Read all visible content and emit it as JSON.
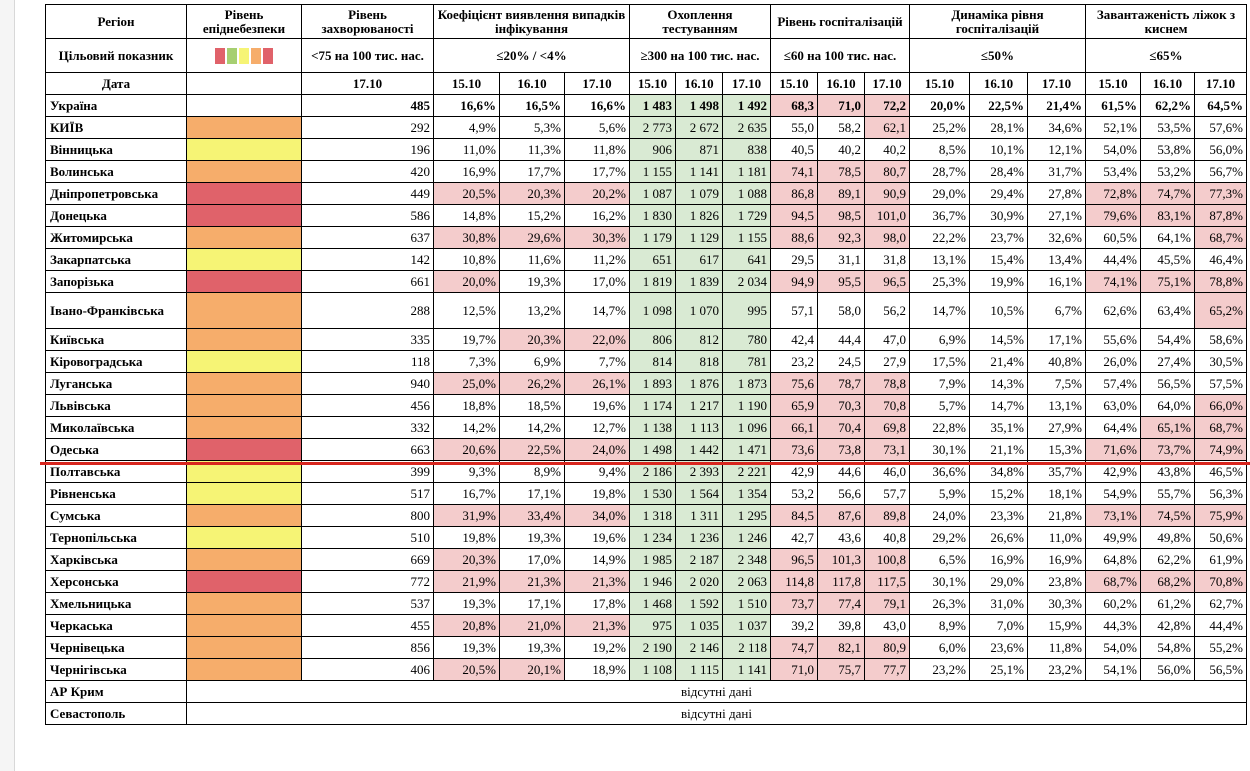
{
  "headers": {
    "region": "Регіон",
    "level": "Рівень епіднебезпеки",
    "incidence": "Рівень захворюваності",
    "detection": "Коефіцієнт виявлення випадків інфікування",
    "testing": "Охоплення тестуванням",
    "hosp": "Рівень госпіталізацій",
    "dyn": "Динаміка рівня госпіталізацій",
    "beds": "Завантаженість ліжок з киснем"
  },
  "targets": {
    "label": "Цільовий показник",
    "incidence": "<75 на 100 тис. нас.",
    "detection": "≤20% / <4%",
    "testing": "≥300 на 100 тис. нас.",
    "hosp": "≤60 на 100 тис. нас.",
    "dyn": "≤50%",
    "beds": "≤65%",
    "legend_colors": [
      "#e0626a",
      "#a6cf71",
      "#f6f475",
      "#f6ad6b",
      "#e0626a"
    ]
  },
  "dates": {
    "label": "Дата",
    "incidence": "17.10",
    "d1": "15.10",
    "d2": "16.10",
    "d3": "17.10"
  },
  "colors": {
    "yellow": "#f6f475",
    "orange": "#f6ad6b",
    "red": "#e0626a",
    "green_cell": "#d9ead3",
    "red_cell": "#f4cccc",
    "divider": "#d8261e"
  },
  "rows": [
    {
      "region": "Україна",
      "level": "",
      "inc": "485",
      "det": [
        "16,6%",
        "16,5%",
        "16,6%"
      ],
      "test": [
        "1 483",
        "1 498",
        "1 492"
      ],
      "hosp": [
        "68,3",
        "71,0",
        "72,2"
      ],
      "dyn": [
        "20,0%",
        "22,5%",
        "21,4%"
      ],
      "beds": [
        "61,5%",
        "62,2%",
        "64,5%"
      ],
      "det_hi": [
        0,
        0,
        0
      ],
      "hosp_hi": [
        1,
        1,
        1
      ],
      "beds_hi": [
        0,
        0,
        0
      ]
    },
    {
      "region": "КИЇВ",
      "level": "o",
      "inc": "292",
      "det": [
        "4,9%",
        "5,3%",
        "5,6%"
      ],
      "test": [
        "2 773",
        "2 672",
        "2 635"
      ],
      "hosp": [
        "55,0",
        "58,2",
        "62,1"
      ],
      "dyn": [
        "25,2%",
        "28,1%",
        "34,6%"
      ],
      "beds": [
        "52,1%",
        "53,5%",
        "57,6%"
      ],
      "det_hi": [
        0,
        0,
        0
      ],
      "hosp_hi": [
        0,
        0,
        1
      ],
      "beds_hi": [
        0,
        0,
        0
      ]
    },
    {
      "region": "Вінницька",
      "level": "y",
      "inc": "196",
      "det": [
        "11,0%",
        "11,3%",
        "11,8%"
      ],
      "test": [
        "906",
        "871",
        "838"
      ],
      "hosp": [
        "40,5",
        "40,2",
        "40,2"
      ],
      "dyn": [
        "8,5%",
        "10,1%",
        "12,1%"
      ],
      "beds": [
        "54,0%",
        "53,8%",
        "56,0%"
      ],
      "det_hi": [
        0,
        0,
        0
      ],
      "hosp_hi": [
        0,
        0,
        0
      ],
      "beds_hi": [
        0,
        0,
        0
      ]
    },
    {
      "region": "Волинська",
      "level": "o",
      "inc": "420",
      "det": [
        "16,9%",
        "17,7%",
        "17,7%"
      ],
      "test": [
        "1 155",
        "1 141",
        "1 181"
      ],
      "hosp": [
        "74,1",
        "78,5",
        "80,7"
      ],
      "dyn": [
        "28,7%",
        "28,4%",
        "31,7%"
      ],
      "beds": [
        "53,4%",
        "53,2%",
        "56,7%"
      ],
      "det_hi": [
        0,
        0,
        0
      ],
      "hosp_hi": [
        1,
        1,
        1
      ],
      "beds_hi": [
        0,
        0,
        0
      ]
    },
    {
      "region": "Дніпропетровська",
      "level": "r",
      "inc": "449",
      "det": [
        "20,5%",
        "20,3%",
        "20,2%"
      ],
      "test": [
        "1 087",
        "1 079",
        "1 088"
      ],
      "hosp": [
        "86,8",
        "89,1",
        "90,9"
      ],
      "dyn": [
        "29,0%",
        "29,4%",
        "27,8%"
      ],
      "beds": [
        "72,8%",
        "74,7%",
        "77,3%"
      ],
      "det_hi": [
        1,
        1,
        1
      ],
      "hosp_hi": [
        1,
        1,
        1
      ],
      "beds_hi": [
        1,
        1,
        1
      ]
    },
    {
      "region": "Донецька",
      "level": "r",
      "inc": "586",
      "det": [
        "14,8%",
        "15,2%",
        "16,2%"
      ],
      "test": [
        "1 830",
        "1 826",
        "1 729"
      ],
      "hosp": [
        "94,5",
        "98,5",
        "101,0"
      ],
      "dyn": [
        "36,7%",
        "30,9%",
        "27,1%"
      ],
      "beds": [
        "79,6%",
        "83,1%",
        "87,8%"
      ],
      "det_hi": [
        0,
        0,
        0
      ],
      "hosp_hi": [
        1,
        1,
        1
      ],
      "beds_hi": [
        1,
        1,
        1
      ]
    },
    {
      "region": "Житомирська",
      "level": "o",
      "inc": "637",
      "det": [
        "30,8%",
        "29,6%",
        "30,3%"
      ],
      "test": [
        "1 179",
        "1 129",
        "1 155"
      ],
      "hosp": [
        "88,6",
        "92,3",
        "98,0"
      ],
      "dyn": [
        "22,2%",
        "23,7%",
        "32,6%"
      ],
      "beds": [
        "60,5%",
        "64,1%",
        "68,7%"
      ],
      "det_hi": [
        1,
        1,
        1
      ],
      "hosp_hi": [
        1,
        1,
        1
      ],
      "beds_hi": [
        0,
        0,
        1
      ]
    },
    {
      "region": "Закарпатська",
      "level": "y",
      "inc": "142",
      "det": [
        "10,8%",
        "11,6%",
        "11,2%"
      ],
      "test": [
        "651",
        "617",
        "641"
      ],
      "hosp": [
        "29,5",
        "31,1",
        "31,8"
      ],
      "dyn": [
        "13,1%",
        "15,4%",
        "13,4%"
      ],
      "beds": [
        "44,4%",
        "45,5%",
        "46,4%"
      ],
      "det_hi": [
        0,
        0,
        0
      ],
      "hosp_hi": [
        0,
        0,
        0
      ],
      "beds_hi": [
        0,
        0,
        0
      ]
    },
    {
      "region": "Запорізька",
      "level": "r",
      "inc": "661",
      "det": [
        "20,0%",
        "19,3%",
        "17,0%"
      ],
      "test": [
        "1 819",
        "1 839",
        "2 034"
      ],
      "hosp": [
        "94,9",
        "95,5",
        "96,5"
      ],
      "dyn": [
        "25,3%",
        "19,9%",
        "16,1%"
      ],
      "beds": [
        "74,1%",
        "75,1%",
        "78,8%"
      ],
      "det_hi": [
        1,
        0,
        0
      ],
      "hosp_hi": [
        1,
        1,
        1
      ],
      "beds_hi": [
        1,
        1,
        1
      ]
    },
    {
      "region": "Івано-Франківська",
      "level": "o",
      "inc": "288",
      "det": [
        "12,5%",
        "13,2%",
        "14,7%"
      ],
      "test": [
        "1 098",
        "1 070",
        "995"
      ],
      "hosp": [
        "57,1",
        "58,0",
        "56,2"
      ],
      "dyn": [
        "14,7%",
        "10,5%",
        "6,7%"
      ],
      "beds": [
        "62,6%",
        "63,4%",
        "65,2%"
      ],
      "det_hi": [
        0,
        0,
        0
      ],
      "hosp_hi": [
        0,
        0,
        0
      ],
      "beds_hi": [
        0,
        0,
        1
      ],
      "tall": true
    },
    {
      "region": "Київська",
      "level": "o",
      "inc": "335",
      "det": [
        "19,7%",
        "20,3%",
        "22,0%"
      ],
      "test": [
        "806",
        "812",
        "780"
      ],
      "hosp": [
        "42,4",
        "44,4",
        "47,0"
      ],
      "dyn": [
        "6,9%",
        "14,5%",
        "17,1%"
      ],
      "beds": [
        "55,6%",
        "54,4%",
        "58,6%"
      ],
      "det_hi": [
        0,
        1,
        1
      ],
      "hosp_hi": [
        0,
        0,
        0
      ],
      "beds_hi": [
        0,
        0,
        0
      ]
    },
    {
      "region": "Кіровоградська",
      "level": "y",
      "inc": "118",
      "det": [
        "7,3%",
        "6,9%",
        "7,7%"
      ],
      "test": [
        "814",
        "818",
        "781"
      ],
      "hosp": [
        "23,2",
        "24,5",
        "27,9"
      ],
      "dyn": [
        "17,5%",
        "21,4%",
        "40,8%"
      ],
      "beds": [
        "26,0%",
        "27,4%",
        "30,5%"
      ],
      "det_hi": [
        0,
        0,
        0
      ],
      "hosp_hi": [
        0,
        0,
        0
      ],
      "beds_hi": [
        0,
        0,
        0
      ]
    },
    {
      "region": "Луганська",
      "level": "o",
      "inc": "940",
      "det": [
        "25,0%",
        "26,2%",
        "26,1%"
      ],
      "test": [
        "1 893",
        "1 876",
        "1 873"
      ],
      "hosp": [
        "75,6",
        "78,7",
        "78,8"
      ],
      "dyn": [
        "7,9%",
        "14,3%",
        "7,5%"
      ],
      "beds": [
        "57,4%",
        "56,5%",
        "57,5%"
      ],
      "det_hi": [
        1,
        1,
        1
      ],
      "hosp_hi": [
        1,
        1,
        1
      ],
      "beds_hi": [
        0,
        0,
        0
      ]
    },
    {
      "region": "Львівська",
      "level": "o",
      "inc": "456",
      "det": [
        "18,8%",
        "18,5%",
        "19,6%"
      ],
      "test": [
        "1 174",
        "1 217",
        "1 190"
      ],
      "hosp": [
        "65,9",
        "70,3",
        "70,8"
      ],
      "dyn": [
        "5,7%",
        "14,7%",
        "13,1%"
      ],
      "beds": [
        "63,0%",
        "64,0%",
        "66,0%"
      ],
      "det_hi": [
        0,
        0,
        0
      ],
      "hosp_hi": [
        1,
        1,
        1
      ],
      "beds_hi": [
        0,
        0,
        1
      ]
    },
    {
      "region": "Миколаївська",
      "level": "o",
      "inc": "332",
      "det": [
        "14,2%",
        "14,2%",
        "12,7%"
      ],
      "test": [
        "1 138",
        "1 113",
        "1 096"
      ],
      "hosp": [
        "66,1",
        "70,4",
        "69,8"
      ],
      "dyn": [
        "22,8%",
        "35,1%",
        "27,9%"
      ],
      "beds": [
        "64,4%",
        "65,1%",
        "68,7%"
      ],
      "det_hi": [
        0,
        0,
        0
      ],
      "hosp_hi": [
        1,
        1,
        1
      ],
      "beds_hi": [
        0,
        1,
        1
      ]
    },
    {
      "region": "Одеська",
      "level": "r",
      "inc": "663",
      "det": [
        "20,6%",
        "22,5%",
        "24,0%"
      ],
      "test": [
        "1 498",
        "1 442",
        "1 471"
      ],
      "hosp": [
        "73,6",
        "73,8",
        "73,1"
      ],
      "dyn": [
        "30,1%",
        "21,1%",
        "15,3%"
      ],
      "beds": [
        "71,6%",
        "73,7%",
        "74,9%"
      ],
      "det_hi": [
        1,
        1,
        1
      ],
      "hosp_hi": [
        1,
        1,
        1
      ],
      "beds_hi": [
        1,
        1,
        1
      ]
    },
    {
      "region": "Полтавська",
      "level": "y",
      "inc": "399",
      "det": [
        "9,3%",
        "8,9%",
        "9,4%"
      ],
      "test": [
        "2 186",
        "2 393",
        "2 221"
      ],
      "hosp": [
        "42,9",
        "44,6",
        "46,0"
      ],
      "dyn": [
        "36,6%",
        "34,8%",
        "35,7%"
      ],
      "beds": [
        "42,9%",
        "43,8%",
        "46,5%"
      ],
      "det_hi": [
        0,
        0,
        0
      ],
      "hosp_hi": [
        0,
        0,
        0
      ],
      "beds_hi": [
        0,
        0,
        0
      ]
    },
    {
      "region": "Рівненська",
      "level": "y",
      "inc": "517",
      "det": [
        "16,7%",
        "17,1%",
        "19,8%"
      ],
      "test": [
        "1 530",
        "1 564",
        "1 354"
      ],
      "hosp": [
        "53,2",
        "56,6",
        "57,7"
      ],
      "dyn": [
        "5,9%",
        "15,2%",
        "18,1%"
      ],
      "beds": [
        "54,9%",
        "55,7%",
        "56,3%"
      ],
      "det_hi": [
        0,
        0,
        0
      ],
      "hosp_hi": [
        0,
        0,
        0
      ],
      "beds_hi": [
        0,
        0,
        0
      ]
    },
    {
      "region": "Сумська",
      "level": "o",
      "inc": "800",
      "det": [
        "31,9%",
        "33,4%",
        "34,0%"
      ],
      "test": [
        "1 318",
        "1 311",
        "1 295"
      ],
      "hosp": [
        "84,5",
        "87,6",
        "89,8"
      ],
      "dyn": [
        "24,0%",
        "23,3%",
        "21,8%"
      ],
      "beds": [
        "73,1%",
        "74,5%",
        "75,9%"
      ],
      "det_hi": [
        1,
        1,
        1
      ],
      "hosp_hi": [
        1,
        1,
        1
      ],
      "beds_hi": [
        1,
        1,
        1
      ]
    },
    {
      "region": "Тернопільська",
      "level": "y",
      "inc": "510",
      "det": [
        "19,8%",
        "19,3%",
        "19,6%"
      ],
      "test": [
        "1 234",
        "1 236",
        "1 246"
      ],
      "hosp": [
        "42,7",
        "43,6",
        "40,8"
      ],
      "dyn": [
        "29,2%",
        "26,6%",
        "11,0%"
      ],
      "beds": [
        "49,9%",
        "49,8%",
        "50,6%"
      ],
      "det_hi": [
        0,
        0,
        0
      ],
      "hosp_hi": [
        0,
        0,
        0
      ],
      "beds_hi": [
        0,
        0,
        0
      ]
    },
    {
      "region": "Харківська",
      "level": "o",
      "inc": "669",
      "det": [
        "20,3%",
        "17,0%",
        "14,9%"
      ],
      "test": [
        "1 985",
        "2 187",
        "2 348"
      ],
      "hosp": [
        "96,5",
        "101,3",
        "100,8"
      ],
      "dyn": [
        "6,5%",
        "16,9%",
        "16,9%"
      ],
      "beds": [
        "64,8%",
        "62,2%",
        "61,9%"
      ],
      "det_hi": [
        1,
        0,
        0
      ],
      "hosp_hi": [
        1,
        1,
        1
      ],
      "beds_hi": [
        0,
        0,
        0
      ]
    },
    {
      "region": "Херсонська",
      "level": "r",
      "inc": "772",
      "det": [
        "21,9%",
        "21,3%",
        "21,3%"
      ],
      "test": [
        "1 946",
        "2 020",
        "2 063"
      ],
      "hosp": [
        "114,8",
        "117,8",
        "117,5"
      ],
      "dyn": [
        "30,1%",
        "29,0%",
        "23,8%"
      ],
      "beds": [
        "68,7%",
        "68,2%",
        "70,8%"
      ],
      "det_hi": [
        1,
        1,
        1
      ],
      "hosp_hi": [
        1,
        1,
        1
      ],
      "beds_hi": [
        1,
        1,
        1
      ]
    },
    {
      "region": "Хмельницька",
      "level": "o",
      "inc": "537",
      "det": [
        "19,3%",
        "17,1%",
        "17,8%"
      ],
      "test": [
        "1 468",
        "1 592",
        "1 510"
      ],
      "hosp": [
        "73,7",
        "77,4",
        "79,1"
      ],
      "dyn": [
        "26,3%",
        "31,0%",
        "30,3%"
      ],
      "beds": [
        "60,2%",
        "61,2%",
        "62,7%"
      ],
      "det_hi": [
        0,
        0,
        0
      ],
      "hosp_hi": [
        1,
        1,
        1
      ],
      "beds_hi": [
        0,
        0,
        0
      ]
    },
    {
      "region": "Черкаська",
      "level": "o",
      "inc": "455",
      "det": [
        "20,8%",
        "21,0%",
        "21,3%"
      ],
      "test": [
        "975",
        "1 035",
        "1 037"
      ],
      "hosp": [
        "39,2",
        "39,8",
        "43,0"
      ],
      "dyn": [
        "8,9%",
        "7,0%",
        "15,9%"
      ],
      "beds": [
        "44,3%",
        "42,8%",
        "44,4%"
      ],
      "det_hi": [
        1,
        1,
        1
      ],
      "hosp_hi": [
        0,
        0,
        0
      ],
      "beds_hi": [
        0,
        0,
        0
      ]
    },
    {
      "region": "Чернівецька",
      "level": "o",
      "inc": "856",
      "det": [
        "19,3%",
        "19,3%",
        "19,2%"
      ],
      "test": [
        "2 190",
        "2 146",
        "2 118"
      ],
      "hosp": [
        "74,7",
        "82,1",
        "80,9"
      ],
      "dyn": [
        "6,0%",
        "23,6%",
        "11,8%"
      ],
      "beds": [
        "54,0%",
        "54,8%",
        "55,2%"
      ],
      "det_hi": [
        0,
        0,
        0
      ],
      "hosp_hi": [
        1,
        1,
        1
      ],
      "beds_hi": [
        0,
        0,
        0
      ]
    },
    {
      "region": "Чернігівська",
      "level": "o",
      "inc": "406",
      "det": [
        "20,5%",
        "20,1%",
        "18,9%"
      ],
      "test": [
        "1 108",
        "1 115",
        "1 141"
      ],
      "hosp": [
        "71,0",
        "75,7",
        "77,7"
      ],
      "dyn": [
        "23,2%",
        "25,1%",
        "23,2%"
      ],
      "beds": [
        "54,1%",
        "56,0%",
        "56,5%"
      ],
      "det_hi": [
        1,
        1,
        0
      ],
      "hosp_hi": [
        1,
        1,
        1
      ],
      "beds_hi": [
        0,
        0,
        0
      ]
    }
  ],
  "missing": [
    {
      "region": "АР Крим",
      "text": "відсутні дані"
    },
    {
      "region": "Севастополь",
      "text": "відсутні дані"
    }
  ]
}
